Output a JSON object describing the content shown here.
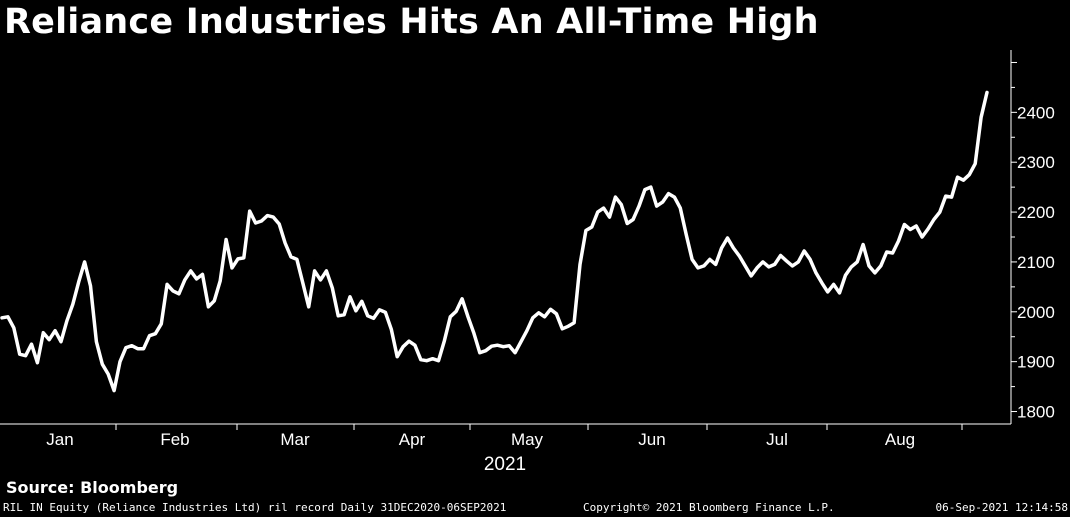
{
  "title": "Reliance Industries Hits An All-Time High",
  "source": "Source: Bloomberg",
  "footer": {
    "left": "RIL IN Equity (Reliance Industries Ltd) ril record  Daily 31DEC2020-06SEP2021",
    "center": "Copyright© 2021 Bloomberg Finance L.P.",
    "right": "06-Sep-2021 12:14:58"
  },
  "colors": {
    "background": "#000000",
    "line": "#ffffff",
    "text": "#ffffff"
  },
  "chart_data": {
    "type": "line",
    "xlabel": "2021",
    "ylabel": "",
    "ylim": [
      1775,
      2525
    ],
    "yticks": [
      1800,
      1900,
      2000,
      2100,
      2200,
      2300,
      2400
    ],
    "xticks": [
      "Jan",
      "Feb",
      "Mar",
      "Apr",
      "May",
      "Jun",
      "Jul",
      "Aug"
    ],
    "grid": false,
    "series": [
      {
        "values": [
          1988,
          1990,
          1968,
          1915,
          1912,
          1935,
          1898,
          1958,
          1944,
          1962,
          1940,
          1982,
          2015,
          2060,
          2100,
          2052,
          1940,
          1895,
          1875,
          1842,
          1900,
          1928,
          1932,
          1926,
          1926,
          1952,
          1956,
          1976,
          2055,
          2042,
          2036,
          2064,
          2082,
          2066,
          2075,
          2010,
          2022,
          2062,
          2145,
          2088,
          2106,
          2108,
          2202,
          2178,
          2182,
          2193,
          2190,
          2176,
          2138,
          2110,
          2105,
          2058,
          2010,
          2082,
          2064,
          2082,
          2048,
          1992,
          1994,
          2030,
          2002,
          2021,
          1992,
          1987,
          2004,
          1999,
          1965,
          1910,
          1930,
          1941,
          1933,
          1904,
          1902,
          1906,
          1902,
          1942,
          1990,
          2001,
          2026,
          1990,
          1957,
          1918,
          1922,
          1931,
          1933,
          1930,
          1932,
          1918,
          1940,
          1962,
          1988,
          1998,
          1990,
          2005,
          1996,
          1966,
          1971,
          1978,
          2095,
          2163,
          2170,
          2200,
          2208,
          2190,
          2230,
          2215,
          2177,
          2185,
          2212,
          2245,
          2250,
          2212,
          2220,
          2237,
          2230,
          2208,
          2155,
          2105,
          2088,
          2092,
          2105,
          2095,
          2128,
          2148,
          2128,
          2112,
          2092,
          2072,
          2088,
          2100,
          2090,
          2095,
          2113,
          2102,
          2092,
          2100,
          2122,
          2105,
          2078,
          2058,
          2040,
          2055,
          2038,
          2073,
          2090,
          2100,
          2135,
          2092,
          2078,
          2092,
          2120,
          2118,
          2142,
          2175,
          2165,
          2172,
          2150,
          2166,
          2185,
          2200,
          2232,
          2230,
          2270,
          2264,
          2275,
          2297,
          2390,
          2440
        ]
      }
    ]
  }
}
